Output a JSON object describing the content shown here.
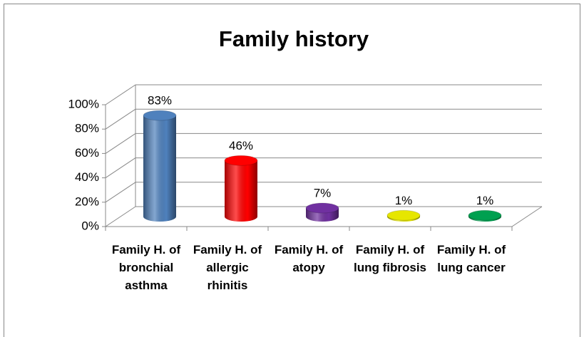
{
  "chart_data": {
    "type": "bar3d",
    "title": "Family history",
    "categories": [
      "Family H. of bronchial asthma",
      "Family H. of allergic rhinitis",
      "Family H. of atopy",
      "Family H. of lung fibrosis",
      "Family H. of lung cancer"
    ],
    "values": [
      83,
      46,
      7,
      1,
      1
    ],
    "value_labels": [
      "83%",
      "46%",
      "7%",
      "1%",
      "1%"
    ],
    "colors": [
      "#4f81bd",
      "#ff0000",
      "#7030a0",
      "#e6e600",
      "#00a050"
    ],
    "ylim": [
      0,
      100
    ],
    "yticks": [
      {
        "value": 0,
        "label": "0%"
      },
      {
        "value": 20,
        "label": "20%"
      },
      {
        "value": 40,
        "label": "40%"
      },
      {
        "value": 60,
        "label": "60%"
      },
      {
        "value": 80,
        "label": "80%"
      },
      {
        "value": 100,
        "label": "100%"
      }
    ],
    "grid": true
  }
}
